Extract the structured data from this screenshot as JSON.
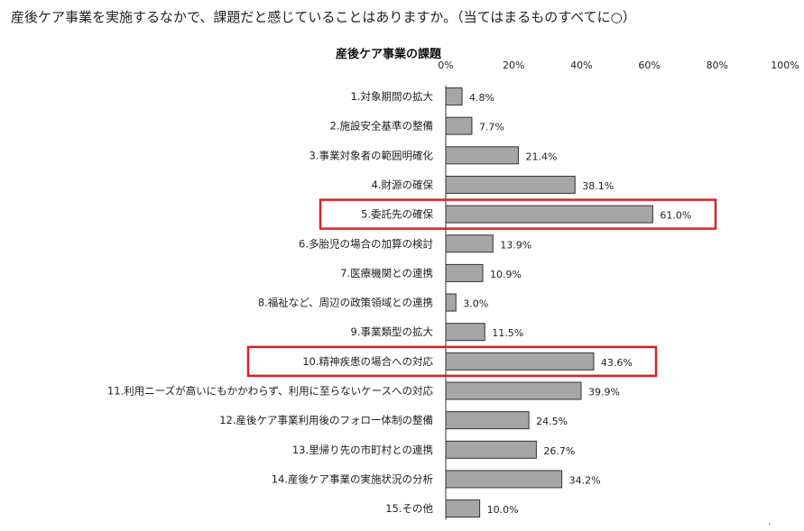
{
  "question": "産後ケア事業を実施するなかで、課題だと感じていることはありますか。（当てはまるものすべてに○）",
  "chart_data": {
    "type": "bar",
    "orientation": "horizontal",
    "title": "産後ケア事業の課題",
    "x_ticks": [
      "0%",
      "20%",
      "40%",
      "60%",
      "80%",
      "100%"
    ],
    "xlim": [
      0,
      100
    ],
    "categories": [
      "1.対象期間の拡大",
      "2.施設安全基準の整備",
      "3.事業対象者の範囲明確化",
      "4.財源の確保",
      "5.委託先の確保",
      "6.多胎児の場合の加算の検討",
      "7.医療機関との連携",
      "8.福祉など、周辺の政策領域との連携",
      "9.事業類型の拡大",
      "10.精神疾患の場合への対応",
      "11.利用ニーズが高いにもかかわらず、利用に至らないケースへの対応",
      "12.産後ケア事業利用後のフォロー体制の整備",
      "13.里帰り先の市町村との連携",
      "14.産後ケア事業の実施状況の分析",
      "15.その他"
    ],
    "values": [
      4.8,
      7.7,
      21.4,
      38.1,
      61.0,
      13.9,
      10.9,
      3.0,
      11.5,
      43.6,
      39.9,
      24.5,
      26.7,
      34.2,
      10.0
    ],
    "value_labels": [
      "4.8%",
      "7.7%",
      "21.4%",
      "38.1%",
      "61.0%",
      "13.9%",
      "10.9%",
      "3.0%",
      "11.5%",
      "43.6%",
      "39.9%",
      "24.5%",
      "26.7%",
      "34.2%",
      "10.0%"
    ],
    "highlighted_categories": [
      5,
      10
    ],
    "bar_color": "#a6a6a6",
    "bar_stroke": "#333333",
    "highlight_color": "#e02020",
    "grid": false
  }
}
